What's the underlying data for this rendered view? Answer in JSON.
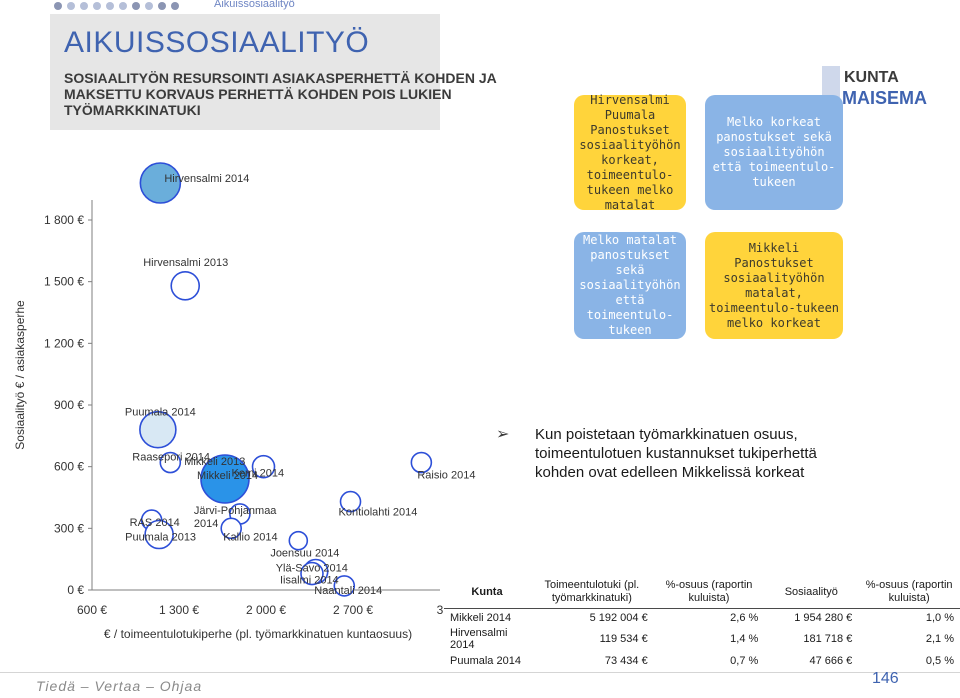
{
  "breadcrumb": "Aikuissosiaalityö",
  "title": "AIKUISSOSIAALITYÖ",
  "subtitle": "SOSIAALITYÖN RESURSOINTI ASIAKASPERHETTÄ KOHDEN JA MAKSETTU KORVAUS PERHETTÄ KOHDEN POIS LUKIEN TYÖMARKKINATUKI",
  "logo": {
    "line1": "KUNTA",
    "line2": "MAISEMA"
  },
  "colors": {
    "accent": "#3f63b0",
    "yellow": "#ffd43b",
    "lightblue": "#8ab4e6",
    "bubble_fill": "#ffffff",
    "bubble_stroke": "#2d4fd8",
    "mikkeli_fill": "#2a93e8",
    "hirvensalmi2014_fill": "#6aaedb",
    "puumala2014_fill": "#d8e8f4"
  },
  "quadrants": {
    "top_left": "Hirvensalmi Puumala Panostukset sosiaalityöhön korkeat, toimeentulo-tukeen melko matalat",
    "top_right": "Melko korkeat panostukset sekä sosiaalityöhön että toimeentulo-tukeen",
    "bottom_left": "Melko matalat panostukset sekä sosiaalityöhön että toimeentulo-tukeen",
    "bottom_right": "Mikkeli Panostukset sosiaalityöhön matalat, toimeentulo-tukeen melko korkeat"
  },
  "note": "Kun poistetaan työmarkkinatuen osuus, toimeentulotuen kustannukset tukiperhettä kohden ovat edelleen Mikkelissä korkeat",
  "table": {
    "headers": [
      "Kunta",
      "Toimeentulotuki (pl. työmarkkinatuki)",
      "%-osuus (raportin kuluista)",
      "Sosiaalityö",
      "%-osuus (raportin kuluista)"
    ],
    "rows": [
      [
        "Mikkeli 2014",
        "5 192 004 €",
        "2,6 %",
        "1 954 280 €",
        "1,0 %"
      ],
      [
        "Hirvensalmi 2014",
        "119 534 €",
        "1,4 %",
        "181 718 €",
        "2,1 %"
      ],
      [
        "Puumala 2014",
        "73 434 €",
        "0,7 %",
        "47 666 €",
        "0,5 %"
      ]
    ]
  },
  "footer": "Tiedä – Vertaa – Ohjaa",
  "page_number": "146",
  "chart_data": {
    "type": "scatter",
    "xlabel": "€ / toimeentulotukiperhe (pl. työmarkkinatuen kuntaosuus)",
    "ylabel": "Sosiaalityö € / asiakasperhe",
    "x_ticks": [
      "600 €",
      "1 300 €",
      "2 000 €",
      "2 700 €",
      "3"
    ],
    "y_ticks": [
      "0 €",
      "300 €",
      "600 €",
      "900 €",
      "1 200 €",
      "1 500 €",
      "1 800 €"
    ],
    "xlim": [
      600,
      3400
    ],
    "ylim": [
      0,
      1950
    ],
    "grid": false,
    "points": [
      {
        "label": "Hirvensalmi 2014",
        "x": 1150,
        "y": 1980,
        "r": 20,
        "fill": "hirvensalmi2014_fill"
      },
      {
        "label": "Hirvensalmi 2013",
        "x": 1350,
        "y": 1480,
        "r": 14,
        "fill": "bubble_fill"
      },
      {
        "label": "Puumala 2014",
        "x": 1130,
        "y": 780,
        "r": 18,
        "fill": "puumala2014_fill"
      },
      {
        "label": "Raasepori 2014",
        "x": 1230,
        "y": 620,
        "r": 10,
        "fill": "bubble_fill"
      },
      {
        "label": "Mikkeli 2013",
        "x": 1680,
        "y": 580,
        "r": 11,
        "fill": "bubble_fill"
      },
      {
        "label": "Kemi 2014",
        "x": 1980,
        "y": 600,
        "r": 11,
        "fill": "bubble_fill"
      },
      {
        "label": "Mikkeli 2014",
        "x": 1670,
        "y": 540,
        "r": 24,
        "fill": "mikkeli_fill"
      },
      {
        "label": "Raisio 2014",
        "x": 3250,
        "y": 620,
        "r": 10,
        "fill": "bubble_fill"
      },
      {
        "label": "Järvi-Pohjanmaa 2014",
        "x": 1790,
        "y": 370,
        "r": 10,
        "fill": "bubble_fill"
      },
      {
        "label": "Kontiolahti 2014",
        "x": 2680,
        "y": 430,
        "r": 10,
        "fill": "bubble_fill"
      },
      {
        "label": "RAS 2014",
        "x": 1080,
        "y": 340,
        "r": 10,
        "fill": "bubble_fill"
      },
      {
        "label": "Kallio 2014",
        "x": 1720,
        "y": 300,
        "r": 10,
        "fill": "bubble_fill"
      },
      {
        "label": "Puumala 2013",
        "x": 1140,
        "y": 270,
        "r": 14,
        "fill": "bubble_fill"
      },
      {
        "label": "Joensuu 2014",
        "x": 2260,
        "y": 240,
        "r": 9,
        "fill": "bubble_fill"
      },
      {
        "label": "Ylä-Savo 2014",
        "x": 2400,
        "y": 90,
        "r": 12,
        "fill": "bubble_fill"
      },
      {
        "label": "Iisalmi 2014",
        "x": 2370,
        "y": 80,
        "r": 11,
        "fill": "bubble_fill"
      },
      {
        "label": "Naantali 2014",
        "x": 2630,
        "y": 20,
        "r": 10,
        "fill": "bubble_fill"
      }
    ]
  }
}
